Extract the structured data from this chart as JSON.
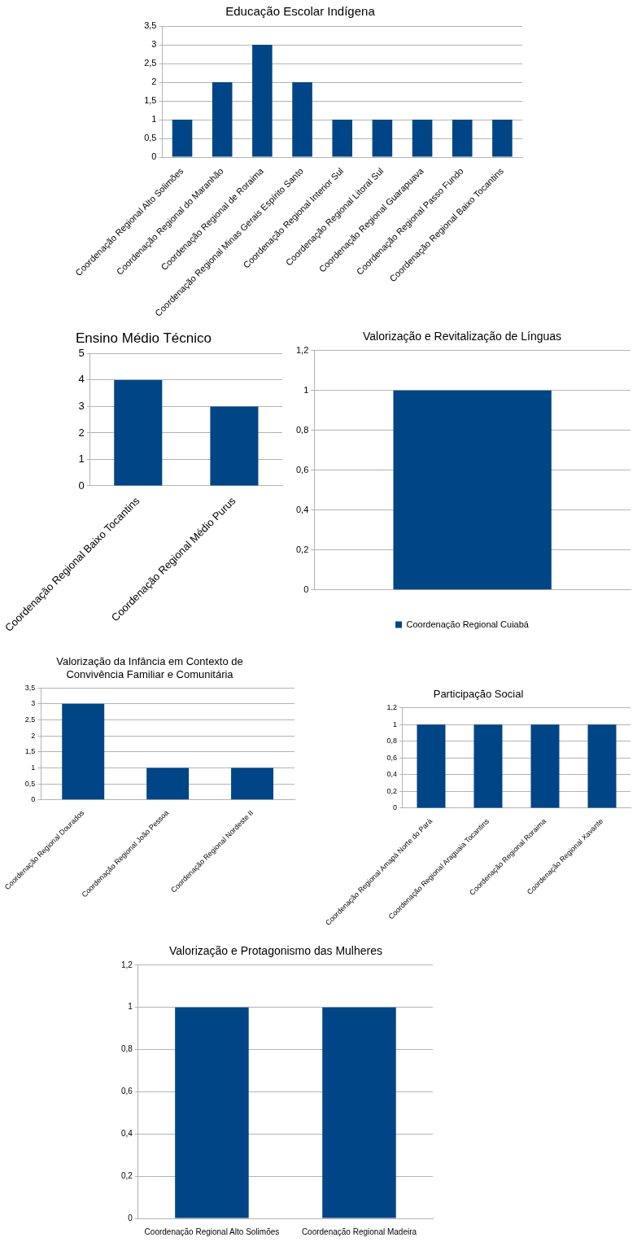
{
  "chart_data": [
    {
      "type": "bar",
      "title": "Educação Escolar Indígena",
      "categories": [
        "Coordenação Regional Alto Solimões",
        "Coordenação Regional do Maranhão",
        "Coordenação Regional de Roraima",
        "Coordenação Regional Minas Gerais Espírito Santo",
        "Coordenação Regional Interior Sul",
        "Coordenação Regional Litoral Sul",
        "Coordenação Regional Guarapuava",
        "Coordenação Regional Passo Fundo",
        "Coordenação Regional Baixo Tocantins"
      ],
      "values": [
        1,
        2,
        3,
        2,
        1,
        1,
        1,
        1,
        1
      ],
      "color": "#004586",
      "ylim": [
        0,
        3.5
      ],
      "yticks": [
        0,
        {
          "value": 0.5,
          "label": "0,5"
        },
        1,
        {
          "value": 1.5,
          "label": "1,5"
        },
        2,
        {
          "value": 2.5,
          "label": "2,5"
        },
        3,
        {
          "value": 3.5,
          "label": "3,5"
        }
      ],
      "grid": "y",
      "legend": false
    },
    {
      "type": "bar",
      "title": "Ensino Médio Técnico",
      "categories": [
        "Coordenação Regional Baixo Tocantins",
        "Coordenação Regional Médio Purus"
      ],
      "values": [
        4,
        3
      ],
      "color": "#004586",
      "ylim": [
        0,
        5
      ],
      "yticks": [
        0,
        1,
        2,
        3,
        4,
        5
      ],
      "grid": "y",
      "legend": false
    },
    {
      "type": "bar",
      "title": "Valorização e Revitalização de Línguas",
      "categories": [
        null
      ],
      "series": [
        {
          "name": "Coordenação Regional Cuiabá",
          "color": "#004586",
          "values": [
            1
          ]
        }
      ],
      "ylim": [
        0,
        1.2
      ],
      "yticks": [
        0,
        {
          "value": 0.2,
          "label": "0,2"
        },
        {
          "value": 0.4,
          "label": "0,4"
        },
        {
          "value": 0.6,
          "label": "0,6"
        },
        {
          "value": 0.8,
          "label": "0,8"
        },
        1,
        {
          "value": 1.2,
          "label": "1,2"
        }
      ],
      "grid": "y",
      "legend": "bottom"
    },
    {
      "type": "bar",
      "title": "Valorização da Infância em Contexto de Convivência Familiar e Comunitária",
      "categories": [
        "Coordenação Regional Dourados",
        "Coordenação Regional João Pessoa",
        "Coordenação Regional Nordeste II"
      ],
      "values": [
        3,
        1,
        1
      ],
      "color": "#004586",
      "ylim": [
        0,
        3.5
      ],
      "yticks": [
        0,
        {
          "value": 0.5,
          "label": "0,5"
        },
        1,
        {
          "value": 1.5,
          "label": "1,5"
        },
        2,
        {
          "value": 2.5,
          "label": "2,5"
        },
        3,
        {
          "value": 3.5,
          "label": "3,5"
        }
      ],
      "grid": "y",
      "legend": false
    },
    {
      "type": "bar",
      "title": "Participação Social",
      "categories": [
        "Coordenação Regional Amapá Norte do Pará",
        "Coordenação Regional Araguaia Tocantins",
        "Coordenação Regional Roraima",
        "Coordenação Regional Xavante"
      ],
      "values": [
        1,
        1,
        1,
        1
      ],
      "color": "#004586",
      "ylim": [
        0,
        1.2
      ],
      "yticks": [
        0,
        {
          "value": 0.2,
          "label": "0,2"
        },
        {
          "value": 0.4,
          "label": "0,4"
        },
        {
          "value": 0.6,
          "label": "0,6"
        },
        {
          "value": 0.8,
          "label": "0,8"
        },
        1,
        {
          "value": 1.2,
          "label": "1,2"
        }
      ],
      "grid": "y",
      "legend": false
    },
    {
      "type": "bar",
      "title": "Valorização e Protagonismo das Mulheres",
      "categories": [
        "Coordenação Regional Alto Solimões",
        "Coordenação Regional Madeira"
      ],
      "values": [
        1,
        1
      ],
      "color": "#004586",
      "ylim": [
        0,
        1.2
      ],
      "yticks": [
        0,
        {
          "value": 0.2,
          "label": "0,2"
        },
        {
          "value": 0.4,
          "label": "0,4"
        },
        {
          "value": 0.6,
          "label": "0,6"
        },
        {
          "value": 0.8,
          "label": "0,8"
        },
        1,
        {
          "value": 1.2,
          "label": "1,2"
        }
      ],
      "grid": "y",
      "legend": false
    }
  ]
}
